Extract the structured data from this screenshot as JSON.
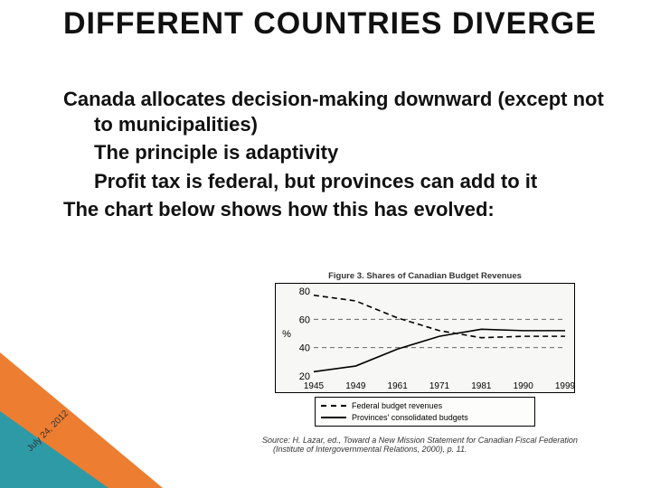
{
  "title": "DIFFERENT COUNTRIES DIVERGE",
  "body": {
    "p1": "Canada allocates decision-making downward (except not to municipalities)",
    "p2": "The principle is adaptivity",
    "p3": "Profit tax is federal, but provinces can add to it",
    "p4": "The chart below shows how this has evolved:"
  },
  "date": "July 24, 2012",
  "triangle_colors": {
    "orange": "#ed7d31",
    "teal": "#2e9aa6"
  },
  "chart": {
    "type": "line",
    "caption": "Figure 3. Shares of Canadian Budget Revenues",
    "background_color": "#f7f7f5",
    "border_color": "#000000",
    "grid_color": "#666666",
    "ylabel": "%",
    "ylim": [
      20,
      80
    ],
    "ytick_step": 20,
    "xticks": [
      1945,
      1949,
      1961,
      1971,
      1981,
      1990,
      1999
    ],
    "series": [
      {
        "name": "Federal budget revenues",
        "style": "dashed",
        "color": "#000000",
        "values": [
          77,
          73,
          61,
          52,
          47,
          48,
          48
        ]
      },
      {
        "name": "Provinces' consolidated budgets",
        "style": "solid",
        "color": "#000000",
        "values": [
          23,
          27,
          39,
          48,
          53,
          52,
          52
        ]
      }
    ],
    "legend": {
      "items": [
        {
          "style": "dashed",
          "label": "Federal budget revenues"
        },
        {
          "style": "solid",
          "label": "Provinces' consolidated budgets"
        }
      ]
    },
    "source_prefix": "Source:",
    "source": "H. Lazar, ed., Toward a New Mission Statement for Canadian Fiscal Federation (Institute of Intergovernmental Relations, 2000), p. 11."
  }
}
